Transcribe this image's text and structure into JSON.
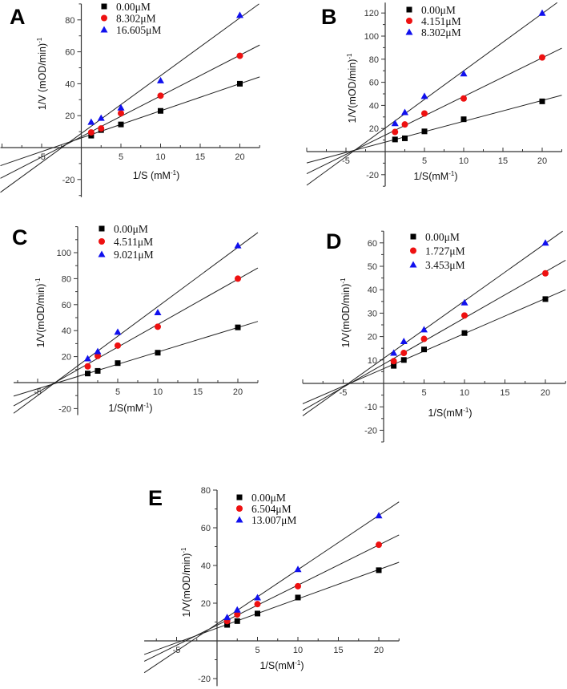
{
  "colors": {
    "s0": "#000000",
    "s1": "#ee1111",
    "s2": "#1010ee",
    "axis": "#333333",
    "fit": "#222222"
  },
  "chart_data": [
    {
      "type": "scatter",
      "panel": "A",
      "xlabel": "1/S (mM",
      "xlabel_sup": "-1",
      "xlabel_end": ")",
      "ylabel": "1/V (mOD/min)",
      "ylabel_sup": "-1",
      "xlim": [
        -10.2,
        22.5
      ],
      "ylim": [
        -31,
        90
      ],
      "xticks": [
        -5,
        5,
        10,
        15,
        20
      ],
      "yticks": [
        -20,
        20,
        40,
        60,
        80
      ],
      "yminor": 10,
      "x": [
        1.25,
        2.5,
        5,
        10,
        20
      ],
      "series": [
        {
          "name": "0.00μM",
          "marker": "square",
          "values": [
            7.5,
            11,
            14.5,
            23,
            40
          ]
        },
        {
          "name": "8.302μM",
          "marker": "circle",
          "values": [
            9.5,
            12,
            21.5,
            32.5,
            57.5
          ]
        },
        {
          "name": "16.605μM",
          "marker": "triangle",
          "values": [
            16,
            18.5,
            25,
            42,
            83
          ]
        }
      ]
    },
    {
      "type": "scatter",
      "panel": "B",
      "xlabel": "1/S(mM",
      "xlabel_sup": "-1",
      "xlabel_end": ")",
      "ylabel": "1/V(mOD/min)",
      "ylabel_sup": "-1",
      "xlim": [
        -10,
        22.5
      ],
      "ylim": [
        -30,
        129
      ],
      "xticks": [
        -5,
        5,
        10,
        15,
        20
      ],
      "yticks": [
        -20,
        20,
        40,
        60,
        80,
        100,
        120
      ],
      "yminor": 10,
      "x": [
        1.25,
        2.5,
        5,
        10,
        20
      ],
      "series": [
        {
          "name": "0.00μM",
          "marker": "square",
          "values": [
            10.5,
            11.5,
            17.5,
            28,
            43.5
          ]
        },
        {
          "name": "4.151μM",
          "marker": "circle",
          "values": [
            17,
            23.5,
            33,
            46,
            81.5
          ]
        },
        {
          "name": "8.302μM",
          "marker": "triangle",
          "values": [
            24.5,
            34,
            48,
            67.5,
            120
          ]
        }
      ]
    },
    {
      "type": "scatter",
      "panel": "C",
      "xlabel": "1/S(mM",
      "xlabel_sup": "-1",
      "xlabel_end": ")",
      "ylabel": "1/V(mOD/min)",
      "ylabel_sup": "-1",
      "xlim": [
        -8,
        22.5
      ],
      "ylim": [
        -25,
        120
      ],
      "xticks": [
        -5,
        5,
        10,
        15,
        20
      ],
      "yticks": [
        -20,
        20,
        40,
        60,
        80,
        100
      ],
      "yminor": 10,
      "x": [
        1.25,
        2.5,
        5,
        10,
        20
      ],
      "series": [
        {
          "name": "0.00μM",
          "marker": "square",
          "values": [
            7,
            9,
            15,
            23,
            42.5
          ]
        },
        {
          "name": "4.511μM",
          "marker": "circle",
          "values": [
            12.5,
            20.5,
            28.5,
            43,
            80
          ]
        },
        {
          "name": "9.021μM",
          "marker": "triangle",
          "values": [
            18.5,
            24,
            39,
            54,
            105.5
          ]
        }
      ]
    },
    {
      "type": "scatter",
      "panel": "D",
      "xlabel": "1/S(mM",
      "xlabel_sup": "-1",
      "xlabel_end": ")",
      "ylabel": "1/V(mOD/min)",
      "ylabel_sup": "-1",
      "xlim": [
        -10,
        22.5
      ],
      "ylim": [
        -25,
        65
      ],
      "xticks": [
        -5,
        5,
        10,
        15,
        20
      ],
      "yticks": [
        -20,
        -10,
        10,
        20,
        30,
        40,
        50,
        60
      ],
      "yminor": 5,
      "x": [
        1.25,
        2.5,
        5,
        10,
        20
      ],
      "series": [
        {
          "name": "0.00μM",
          "marker": "square",
          "values": [
            7.5,
            10,
            14.5,
            21.5,
            36
          ]
        },
        {
          "name": "1.727μM",
          "marker": "circle",
          "values": [
            9.5,
            13,
            19,
            29,
            47
          ]
        },
        {
          "name": "3.453μM",
          "marker": "triangle",
          "values": [
            13,
            18,
            23,
            34.5,
            60
          ]
        }
      ]
    },
    {
      "type": "scatter",
      "panel": "E",
      "xlabel": "1/S(mM",
      "xlabel_sup": "-1",
      "xlabel_end": ")",
      "ylabel": "1/V(mOD/min)",
      "ylabel_sup": "-1",
      "xlim": [
        -9,
        22.5
      ],
      "ylim": [
        -24,
        80
      ],
      "xticks": [
        -5,
        5,
        10,
        15,
        20
      ],
      "yticks": [
        -20,
        20,
        40,
        60,
        80
      ],
      "yminor": 10,
      "x": [
        1.25,
        2.5,
        5,
        10,
        20
      ],
      "series": [
        {
          "name": "0.00μM",
          "marker": "square",
          "values": [
            8.5,
            10.5,
            14.5,
            23,
            37.5
          ]
        },
        {
          "name": "6.504μM",
          "marker": "circle",
          "values": [
            10.5,
            14,
            19.5,
            29,
            51
          ]
        },
        {
          "name": "13.007μM",
          "marker": "triangle",
          "values": [
            12.5,
            16.5,
            23,
            38,
            66.5
          ]
        }
      ]
    }
  ]
}
